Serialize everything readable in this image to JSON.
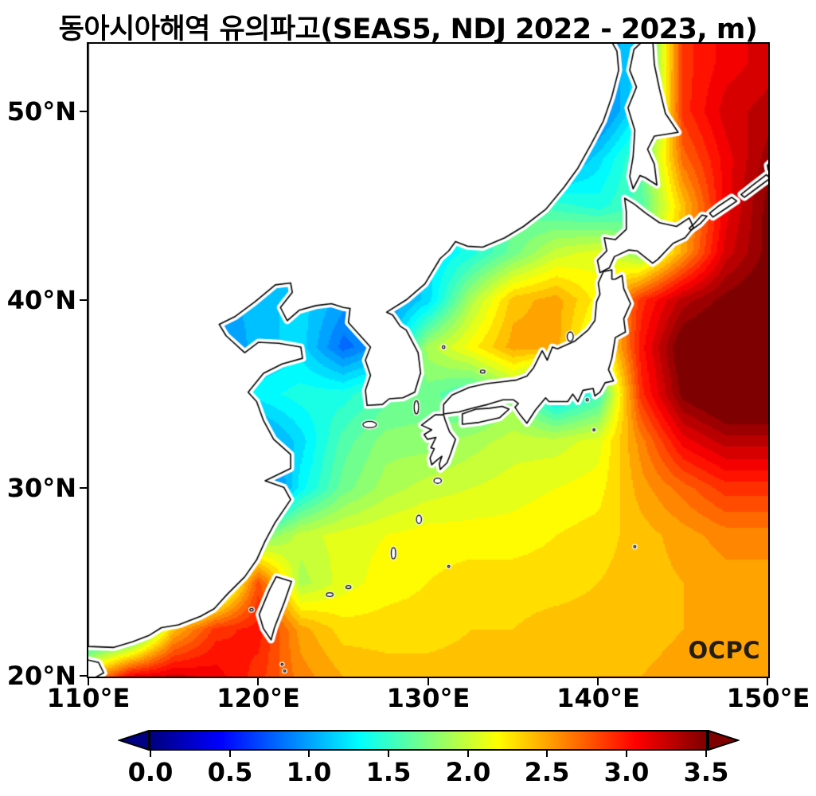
{
  "title": "동아시아해역 유의파고(SEAS5, NDJ 2022 - 2023, m)",
  "logo": {
    "text": "OCPC"
  },
  "axes": {
    "x_tick_labels": [
      "110°E",
      "120°E",
      "130°E",
      "140°E",
      "150°E"
    ],
    "y_tick_labels": [
      "50°N",
      "40°N",
      "30°N",
      "20°N"
    ]
  },
  "colorbar": {
    "ticks": [
      "0.0",
      "0.5",
      "1.0",
      "1.5",
      "2.0",
      "2.5",
      "3.0",
      "3.5"
    ],
    "min": 0.0,
    "max": 3.5,
    "colormap": "jet",
    "extend": "both",
    "under_color": "#000084",
    "over_color": "#800000"
  },
  "chart_data": {
    "type": "heatmap",
    "title": "동아시아해역 유의파고(SEAS5, NDJ 2022 - 2023, m)",
    "variable": "significant wave height",
    "units": "m",
    "model": "SEAS5",
    "period": "NDJ 2022 - 2023",
    "lon_range": [
      110,
      150
    ],
    "lat_range": [
      20,
      53.6
    ],
    "scale_min": 0.0,
    "scale_max": 3.5,
    "lons": [
      110,
      112.5,
      115,
      117.5,
      120,
      122.5,
      125,
      127.5,
      130,
      132.5,
      135,
      137.5,
      140,
      142.5,
      145,
      147.5,
      150
    ],
    "lats": [
      52.5,
      50,
      47.5,
      45,
      42.5,
      40,
      37.5,
      35,
      32.5,
      30,
      27.5,
      25,
      22.5,
      20
    ],
    "values_m": [
      [
        1.0,
        1.0,
        1.0,
        1.0,
        1.0,
        1.0,
        1.0,
        1.0,
        1.0,
        1.0,
        1.0,
        1.0,
        0.9,
        1.2,
        2.9,
        3.1,
        3.2
      ],
      [
        1.0,
        1.0,
        1.0,
        1.0,
        1.0,
        1.0,
        1.0,
        1.0,
        1.0,
        1.0,
        1.0,
        1.0,
        0.8,
        1.3,
        2.9,
        3.2,
        3.3
      ],
      [
        1.0,
        1.0,
        1.0,
        1.0,
        1.0,
        1.0,
        1.0,
        1.0,
        1.0,
        1.0,
        1.0,
        0.9,
        1.2,
        1.6,
        2.7,
        3.1,
        3.4
      ],
      [
        1.0,
        1.0,
        1.0,
        1.0,
        1.0,
        1.0,
        1.0,
        1.0,
        1.3,
        1.5,
        1.6,
        1.5,
        1.4,
        1.6,
        2.4,
        3.1,
        3.5
      ],
      [
        1.0,
        1.0,
        1.0,
        1.0,
        1.0,
        1.0,
        1.0,
        1.0,
        1.2,
        1.4,
        1.7,
        2.0,
        2.1,
        1.8,
        2.5,
        3.2,
        3.5
      ],
      [
        1.0,
        1.0,
        1.0,
        1.0,
        1.1,
        1.2,
        1.0,
        0.9,
        1.2,
        1.9,
        2.4,
        2.5,
        2.2,
        2.9,
        3.3,
        3.5,
        3.6
      ],
      [
        1.0,
        1.0,
        1.0,
        0.9,
        1.1,
        1.2,
        0.8,
        1.0,
        1.9,
        2.2,
        2.5,
        2.5,
        2.0,
        3.0,
        3.6,
        3.7,
        3.7
      ],
      [
        1.0,
        1.0,
        1.0,
        1.2,
        1.3,
        1.4,
        1.4,
        1.6,
        1.7,
        1.5,
        1.8,
        1.2,
        1.5,
        2.9,
        3.5,
        3.7,
        3.7
      ],
      [
        1.0,
        1.0,
        1.0,
        0.9,
        0.9,
        1.2,
        1.6,
        1.8,
        1.8,
        1.9,
        2.0,
        2.0,
        2.1,
        2.6,
        3.1,
        3.3,
        3.3
      ],
      [
        1.0,
        1.0,
        1.2,
        0.8,
        0.6,
        1.3,
        1.7,
        1.9,
        2.0,
        2.05,
        2.1,
        2.15,
        2.2,
        2.5,
        2.7,
        2.9,
        2.9
      ],
      [
        1.0,
        1.0,
        1.0,
        1.3,
        1.7,
        2.0,
        2.1,
        2.15,
        2.2,
        2.2,
        2.2,
        2.25,
        2.3,
        2.4,
        2.5,
        2.6,
        2.6
      ],
      [
        1.0,
        1.0,
        1.0,
        1.6,
        2.8,
        1.9,
        2.1,
        2.2,
        2.25,
        2.3,
        2.3,
        2.3,
        2.35,
        2.4,
        2.45,
        2.5,
        2.5
      ],
      [
        1.0,
        1.2,
        2.4,
        2.9,
        3.0,
        2.5,
        2.3,
        2.3,
        2.3,
        2.35,
        2.35,
        2.4,
        2.4,
        2.4,
        2.45,
        2.5,
        2.5
      ],
      [
        2.4,
        3.1,
        3.2,
        3.1,
        2.9,
        2.6,
        2.45,
        2.4,
        2.4,
        2.4,
        2.4,
        2.4,
        2.45,
        2.45,
        2.5,
        2.5,
        2.55
      ]
    ],
    "coastlines": [
      [
        [
          110,
          21.6
        ],
        [
          111.5,
          21.55
        ],
        [
          112.6,
          21.85
        ],
        [
          113.6,
          22.2
        ],
        [
          114.3,
          22.6
        ],
        [
          115.3,
          22.75
        ],
        [
          116.6,
          23.2
        ],
        [
          117.4,
          23.6
        ],
        [
          118.2,
          24.4
        ],
        [
          119.2,
          25.3
        ],
        [
          119.9,
          26.2
        ],
        [
          120.4,
          27.2
        ],
        [
          121.0,
          28.2
        ],
        [
          121.9,
          29.4
        ],
        [
          121.5,
          30.05
        ],
        [
          120.4,
          30.4
        ],
        [
          121.9,
          31.05
        ],
        [
          121.9,
          31.8
        ],
        [
          120.9,
          32.6
        ],
        [
          120.3,
          33.6
        ],
        [
          119.9,
          34.6
        ],
        [
          119.4,
          35.1
        ],
        [
          120.3,
          36.1
        ],
        [
          121.4,
          36.6
        ],
        [
          122.6,
          36.9
        ],
        [
          122.5,
          37.5
        ],
        [
          121.2,
          37.7
        ],
        [
          120.0,
          37.75
        ],
        [
          119.2,
          37.2
        ],
        [
          118.1,
          38.1
        ],
        [
          117.7,
          38.7
        ],
        [
          118.6,
          39.1
        ],
        [
          119.8,
          39.9
        ],
        [
          121.0,
          40.8
        ],
        [
          121.9,
          40.9
        ],
        [
          122.0,
          40.4
        ],
        [
          121.3,
          39.6
        ],
        [
          121.7,
          38.9
        ],
        [
          122.4,
          39.45
        ],
        [
          123.4,
          39.7
        ],
        [
          124.3,
          39.8
        ],
        [
          125.0,
          39.6
        ],
        [
          125.4,
          39.55
        ],
        [
          125.3,
          38.8
        ],
        [
          126.2,
          37.9
        ],
        [
          126.6,
          37.5
        ],
        [
          126.3,
          36.8
        ],
        [
          126.6,
          36.0
        ],
        [
          126.3,
          35.2
        ],
        [
          126.4,
          34.4
        ],
        [
          127.3,
          34.45
        ],
        [
          127.7,
          34.75
        ],
        [
          128.5,
          34.8
        ],
        [
          129.2,
          35.1
        ],
        [
          129.5,
          36.0
        ],
        [
          129.55,
          36.1
        ],
        [
          129.4,
          37.2
        ],
        [
          128.7,
          38.4
        ],
        [
          128.35,
          38.6
        ],
        [
          127.9,
          39.2
        ],
        [
          127.55,
          39.35
        ],
        [
          128.7,
          40.0
        ],
        [
          129.8,
          40.85
        ],
        [
          130.7,
          42.2
        ],
        [
          131.2,
          42.6
        ],
        [
          131.6,
          43.1
        ],
        [
          132.3,
          42.85
        ],
        [
          133.2,
          42.8
        ],
        [
          134.5,
          43.3
        ],
        [
          135.6,
          43.9
        ],
        [
          136.9,
          44.8
        ],
        [
          138.0,
          46.0
        ],
        [
          138.8,
          47.0
        ],
        [
          139.6,
          48.3
        ],
        [
          140.3,
          49.5
        ],
        [
          140.8,
          50.8
        ],
        [
          141.2,
          52.2
        ],
        [
          141.1,
          53.2
        ],
        [
          140.7,
          53.85
        ],
        [
          110,
          53.85
        ]
      ],
      [
        [
          109.9,
          19.7
        ],
        [
          110.9,
          20.2
        ],
        [
          110.6,
          20.75
        ],
        [
          109.9,
          20.9
        ]
      ],
      [
        [
          130.9,
          33.95
        ],
        [
          131.8,
          34.05
        ],
        [
          132.6,
          34.25
        ],
        [
          133.5,
          34.45
        ],
        [
          134.4,
          34.7
        ],
        [
          135.0,
          34.7
        ],
        [
          135.3,
          34.5
        ],
        [
          135.1,
          34.3
        ],
        [
          135.4,
          33.9
        ],
        [
          135.8,
          33.45
        ],
        [
          136.3,
          34.15
        ],
        [
          136.9,
          34.8
        ],
        [
          137.1,
          34.6
        ],
        [
          138.2,
          34.6
        ],
        [
          138.5,
          35.0
        ],
        [
          138.8,
          34.6
        ],
        [
          139.1,
          35.2
        ],
        [
          139.7,
          35.3
        ],
        [
          139.8,
          34.9
        ],
        [
          140.1,
          35.1
        ],
        [
          140.4,
          35.6
        ],
        [
          140.9,
          35.7
        ],
        [
          140.6,
          36.3
        ],
        [
          140.8,
          36.9
        ],
        [
          141.0,
          38.0
        ],
        [
          141.6,
          38.3
        ],
        [
          141.5,
          39.0
        ],
        [
          141.9,
          39.8
        ],
        [
          141.5,
          40.6
        ],
        [
          141.4,
          41.3
        ],
        [
          141.0,
          41.1
        ],
        [
          140.8,
          41.1
        ],
        [
          140.8,
          41.6
        ],
        [
          140.3,
          41.5
        ],
        [
          140.0,
          40.9
        ],
        [
          140.1,
          40.3
        ],
        [
          139.9,
          39.9
        ],
        [
          139.8,
          38.9
        ],
        [
          139.4,
          38.4
        ],
        [
          138.6,
          37.8
        ],
        [
          137.6,
          37.4
        ],
        [
          137.3,
          37.5
        ],
        [
          137.0,
          36.8
        ],
        [
          136.7,
          37.3
        ],
        [
          136.2,
          36.4
        ],
        [
          135.8,
          35.95
        ],
        [
          135.2,
          35.75
        ],
        [
          134.3,
          35.65
        ],
        [
          133.4,
          35.55
        ],
        [
          132.4,
          35.35
        ],
        [
          131.4,
          34.95
        ],
        [
          130.9,
          34.45
        ],
        [
          130.9,
          33.95
        ]
      ],
      [
        [
          129.6,
          33.35
        ],
        [
          130.4,
          33.9
        ],
        [
          130.9,
          33.9
        ],
        [
          131.0,
          33.6
        ],
        [
          131.25,
          33.0
        ],
        [
          131.6,
          32.6
        ],
        [
          131.3,
          31.8
        ],
        [
          131.1,
          31.35
        ],
        [
          130.7,
          31.0
        ],
        [
          130.65,
          31.3
        ],
        [
          130.8,
          31.7
        ],
        [
          130.45,
          31.45
        ],
        [
          130.2,
          31.25
        ],
        [
          130.1,
          31.6
        ],
        [
          130.35,
          32.1
        ],
        [
          130.15,
          32.15
        ],
        [
          130.45,
          32.7
        ],
        [
          129.95,
          32.6
        ],
        [
          129.75,
          32.85
        ],
        [
          130.2,
          33.1
        ],
        [
          129.6,
          33.35
        ]
      ],
      [
        [
          132.0,
          33.4
        ],
        [
          133.0,
          33.5
        ],
        [
          134.2,
          33.75
        ],
        [
          134.75,
          34.2
        ],
        [
          134.35,
          34.35
        ],
        [
          133.6,
          34.25
        ],
        [
          132.8,
          34.2
        ],
        [
          132.0,
          33.95
        ],
        [
          132.0,
          33.4
        ]
      ],
      [
        [
          140.1,
          41.45
        ],
        [
          139.95,
          42.1
        ],
        [
          140.5,
          42.6
        ],
        [
          140.35,
          43.3
        ],
        [
          141.0,
          43.2
        ],
        [
          141.65,
          43.75
        ],
        [
          141.65,
          44.7
        ],
        [
          141.55,
          45.4
        ],
        [
          142.1,
          45.1
        ],
        [
          142.8,
          44.6
        ],
        [
          143.6,
          44.1
        ],
        [
          144.6,
          43.9
        ],
        [
          145.35,
          44.35
        ],
        [
          145.6,
          43.85
        ],
        [
          145.1,
          43.3
        ],
        [
          144.4,
          43.0
        ],
        [
          143.5,
          42.15
        ],
        [
          143.2,
          41.95
        ],
        [
          142.3,
          42.6
        ],
        [
          141.8,
          42.65
        ],
        [
          140.95,
          42.3
        ],
        [
          140.65,
          41.7
        ],
        [
          140.1,
          41.45
        ]
      ],
      [
        [
          142.75,
          53.85
        ],
        [
          142.1,
          53.3
        ],
        [
          141.85,
          52.2
        ],
        [
          142.25,
          51.3
        ],
        [
          141.75,
          50.2
        ],
        [
          142.15,
          49.0
        ],
        [
          142.05,
          47.6
        ],
        [
          141.85,
          46.55
        ],
        [
          142.05,
          45.9
        ],
        [
          142.45,
          46.6
        ],
        [
          142.75,
          46.5
        ],
        [
          143.45,
          46.1
        ],
        [
          143.3,
          47.2
        ],
        [
          142.9,
          48.0
        ],
        [
          143.3,
          48.7
        ],
        [
          144.7,
          48.9
        ],
        [
          143.95,
          49.9
        ],
        [
          143.6,
          51.2
        ],
        [
          143.3,
          52.5
        ],
        [
          143.2,
          53.85
        ]
      ],
      [
        [
          121.05,
          25.3
        ],
        [
          121.95,
          25.05
        ],
        [
          121.55,
          24.0
        ],
        [
          120.95,
          22.6
        ],
        [
          120.75,
          21.95
        ],
        [
          120.3,
          22.55
        ],
        [
          120.05,
          23.3
        ],
        [
          120.65,
          24.6
        ],
        [
          121.05,
          25.3
        ]
      ],
      [
        [
          145.45,
          43.7
        ],
        [
          146.0,
          44.05
        ],
        [
          146.4,
          44.45
        ],
        [
          146.1,
          44.5
        ],
        [
          145.65,
          44.05
        ],
        [
          145.35,
          43.8
        ],
        [
          145.45,
          43.7
        ]
      ],
      [
        [
          146.75,
          44.4
        ],
        [
          147.5,
          44.85
        ],
        [
          148.15,
          45.25
        ],
        [
          147.85,
          45.45
        ],
        [
          147.1,
          45.0
        ],
        [
          146.55,
          44.6
        ],
        [
          146.75,
          44.4
        ]
      ],
      [
        [
          148.6,
          45.45
        ],
        [
          149.35,
          45.95
        ],
        [
          150.1,
          46.45
        ],
        [
          149.9,
          46.65
        ],
        [
          149.1,
          46.1
        ],
        [
          148.4,
          45.6
        ],
        [
          148.6,
          45.45
        ]
      ],
      [
        [
          150.0,
          46.9
        ],
        [
          150.6,
          47.3
        ],
        [
          150.6,
          47.7
        ],
        [
          149.95,
          47.15
        ],
        [
          150.0,
          46.9
        ]
      ]
    ],
    "islands": [
      [
        126.55,
        33.38,
        0.4,
        0.17
      ],
      [
        129.3,
        34.3,
        0.13,
        0.35
      ],
      [
        130.9,
        37.5,
        0.08,
        0.08
      ],
      [
        133.2,
        36.2,
        0.14,
        0.08
      ],
      [
        138.35,
        38.05,
        0.18,
        0.25
      ],
      [
        139.35,
        34.7,
        0.07,
        0.07
      ],
      [
        139.75,
        33.1,
        0.06,
        0.06
      ],
      [
        142.15,
        26.9,
        0.06,
        0.06
      ],
      [
        130.55,
        30.4,
        0.22,
        0.14
      ],
      [
        129.45,
        28.35,
        0.15,
        0.22
      ],
      [
        127.95,
        26.55,
        0.13,
        0.3
      ],
      [
        125.3,
        24.75,
        0.15,
        0.08
      ],
      [
        124.2,
        24.35,
        0.2,
        0.1
      ],
      [
        131.2,
        25.85,
        0.06,
        0.05
      ],
      [
        119.6,
        23.55,
        0.1,
        0.07
      ],
      [
        121.4,
        20.65,
        0.06,
        0.05
      ],
      [
        121.55,
        20.3,
        0.06,
        0.05
      ]
    ]
  }
}
